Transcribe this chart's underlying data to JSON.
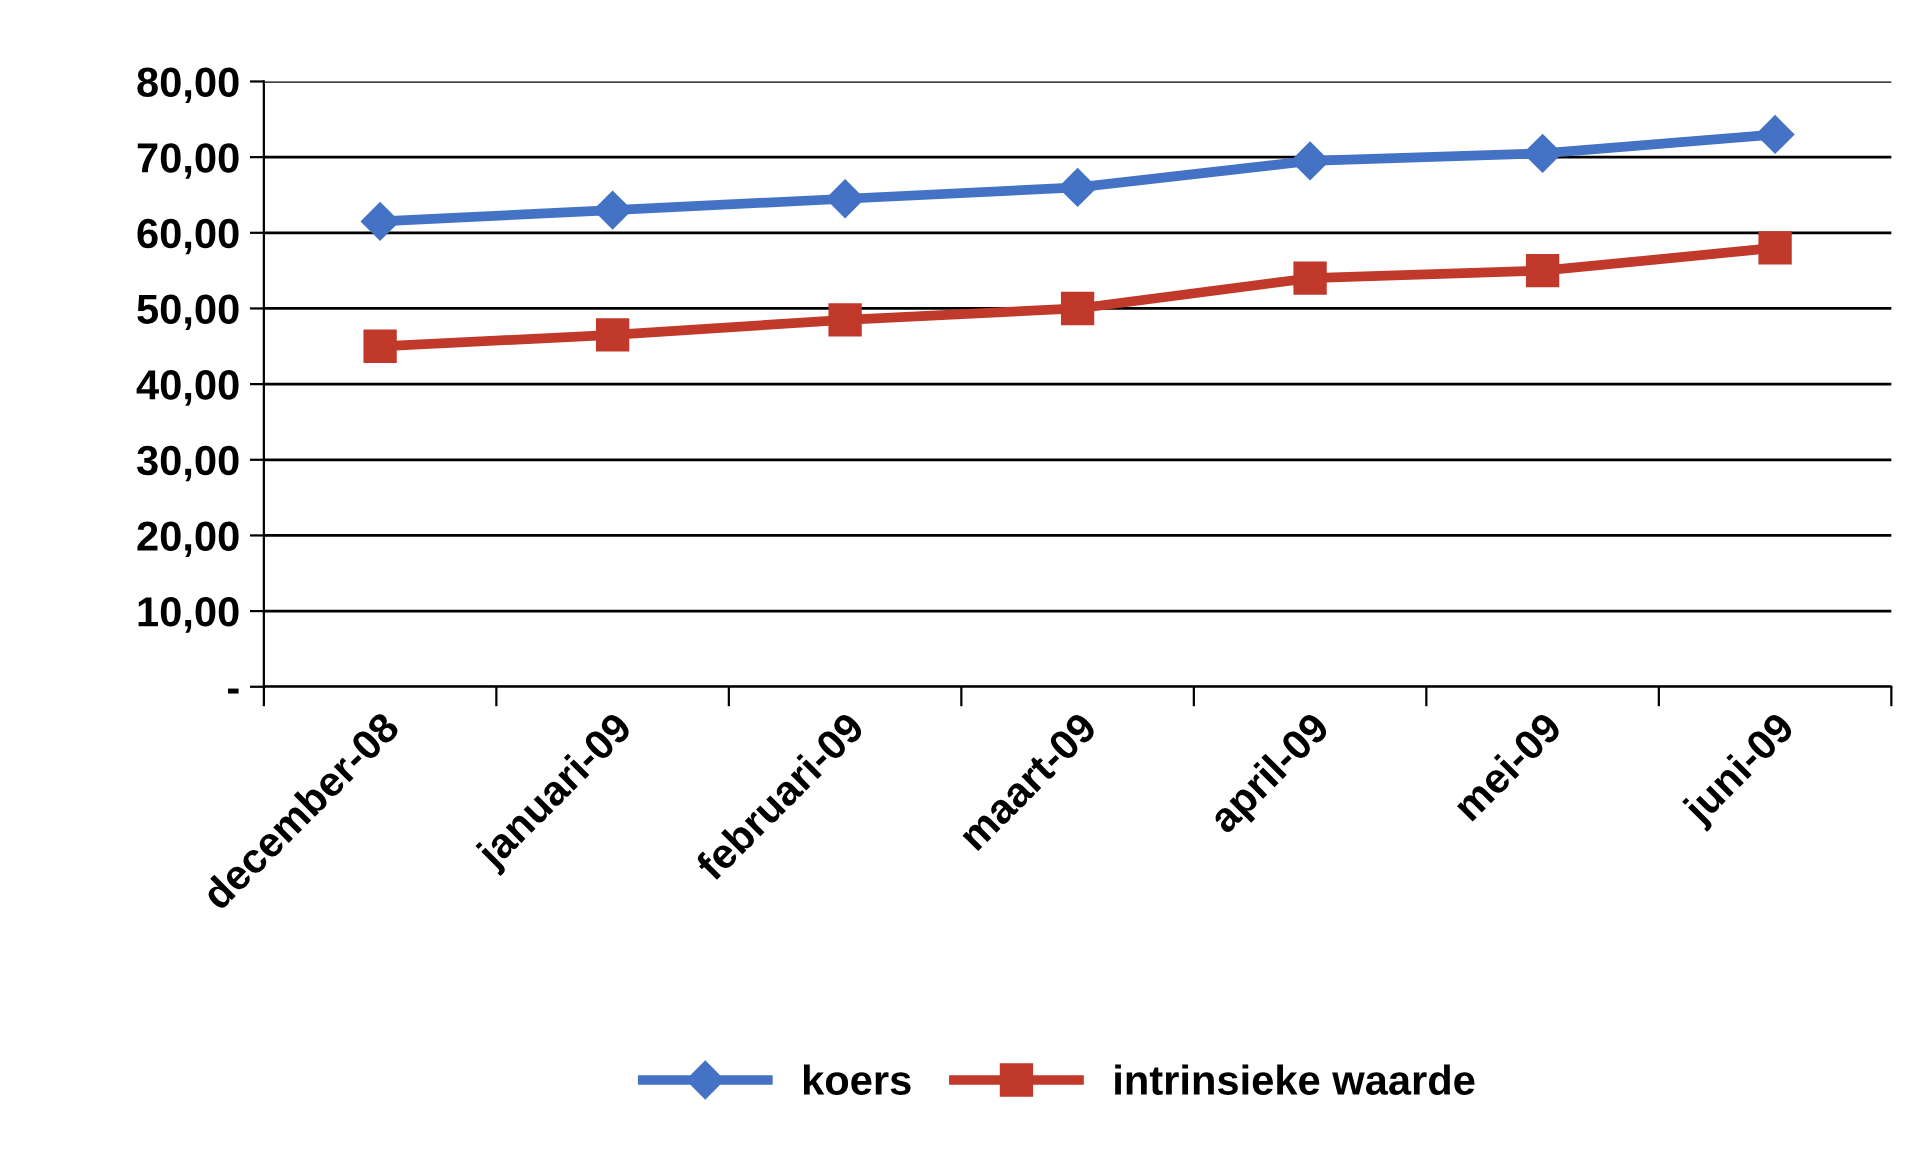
{
  "chart_data": {
    "type": "line",
    "categories": [
      "december-08",
      "januari-09",
      "februari-09",
      "maart-09",
      "april-09",
      "mei-09",
      "juni-09"
    ],
    "series": [
      {
        "name": "koers",
        "color": "#4472c4",
        "marker": "diamond",
        "values": [
          61.5,
          63.0,
          64.5,
          66.0,
          69.5,
          70.5,
          73.0
        ]
      },
      {
        "name": "intrinsieke waarde",
        "color": "#c0392b",
        "marker": "square",
        "values": [
          45.0,
          46.5,
          48.5,
          50.0,
          54.0,
          55.0,
          58.0
        ]
      }
    ],
    "ylim": [
      0,
      80
    ],
    "yticks": [
      {
        "value": 0,
        "label": "-"
      },
      {
        "value": 10,
        "label": "10,00"
      },
      {
        "value": 20,
        "label": "20,00"
      },
      {
        "value": 30,
        "label": "30,00"
      },
      {
        "value": 40,
        "label": "40,00"
      },
      {
        "value": 50,
        "label": "50,00"
      },
      {
        "value": 60,
        "label": "60,00"
      },
      {
        "value": 70,
        "label": "70,00"
      },
      {
        "value": 80,
        "label": "80,00"
      }
    ],
    "grid": "y",
    "legend": "bottom"
  }
}
